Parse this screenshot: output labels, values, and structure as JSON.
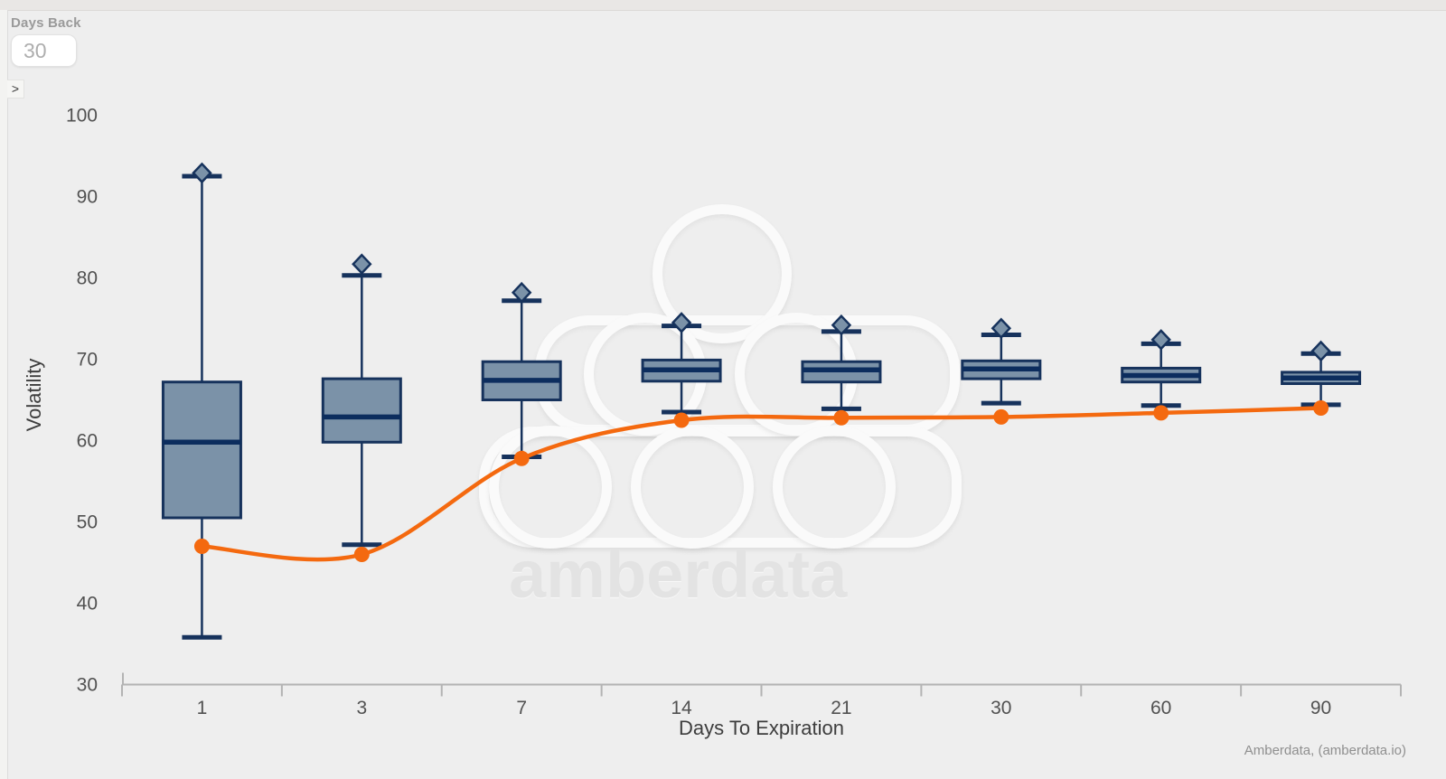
{
  "controls": {
    "days_back": {
      "label": "Days Back",
      "value": "30"
    },
    "collapse_chevron": ">"
  },
  "watermark": {
    "text": "amberdata"
  },
  "attribution": {
    "text": "Amberdata, (amberdata.io)"
  },
  "chart_data": {
    "type": "boxplot_with_line",
    "title": "",
    "xlabel": "Days To Expiration",
    "ylabel": "Volatility",
    "categories": [
      "1",
      "3",
      "7",
      "14",
      "21",
      "30",
      "60",
      "90"
    ],
    "ylim": [
      30,
      100
    ],
    "yticks": [
      30,
      40,
      50,
      60,
      70,
      80,
      90,
      100
    ],
    "grid": false,
    "legend": "none",
    "series": [
      {
        "name": "volatility-distribution-boxplot",
        "type": "boxplot",
        "boxes": [
          {
            "category": "1",
            "whisker_low": 35.8,
            "q1": 50.5,
            "median": 59.8,
            "q3": 67.2,
            "whisker_high": 92.5,
            "outlier": 92.9
          },
          {
            "category": "3",
            "whisker_low": 47.2,
            "q1": 59.8,
            "median": 62.9,
            "q3": 67.6,
            "whisker_high": 80.3,
            "outlier": 81.7
          },
          {
            "category": "7",
            "whisker_low": 58.0,
            "q1": 65.0,
            "median": 67.4,
            "q3": 69.7,
            "whisker_high": 77.2,
            "outlier": 78.2
          },
          {
            "category": "14",
            "whisker_low": 63.5,
            "q1": 67.3,
            "median": 68.7,
            "q3": 69.9,
            "whisker_high": 74.1,
            "outlier": 74.5
          },
          {
            "category": "21",
            "whisker_low": 63.9,
            "q1": 67.2,
            "median": 68.7,
            "q3": 69.7,
            "whisker_high": 73.4,
            "outlier": 74.2
          },
          {
            "category": "30",
            "whisker_low": 64.6,
            "q1": 67.6,
            "median": 68.8,
            "q3": 69.8,
            "whisker_high": 73.0,
            "outlier": 73.8
          },
          {
            "category": "60",
            "whisker_low": 64.3,
            "q1": 67.2,
            "median": 68.0,
            "q3": 68.9,
            "whisker_high": 71.9,
            "outlier": 72.4
          },
          {
            "category": "90",
            "whisker_low": 64.4,
            "q1": 67.0,
            "median": 67.7,
            "q3": 68.4,
            "whisker_high": 70.7,
            "outlier": 71.0
          }
        ]
      },
      {
        "name": "current-volatility-line",
        "type": "line",
        "values": [
          47.0,
          46.0,
          57.8,
          62.5,
          62.8,
          62.9,
          63.4,
          64.0
        ]
      }
    ],
    "colors": {
      "box_fill": "#7b92a8",
      "box_stroke": "#16325c",
      "median_stroke": "#0c2d5e",
      "line_color": "#f4690f",
      "axis_color": "#b3b3b3",
      "tick_label_color": "#515151",
      "axis_title_color": "#3d3d3d",
      "background": "#eeeeee"
    }
  }
}
